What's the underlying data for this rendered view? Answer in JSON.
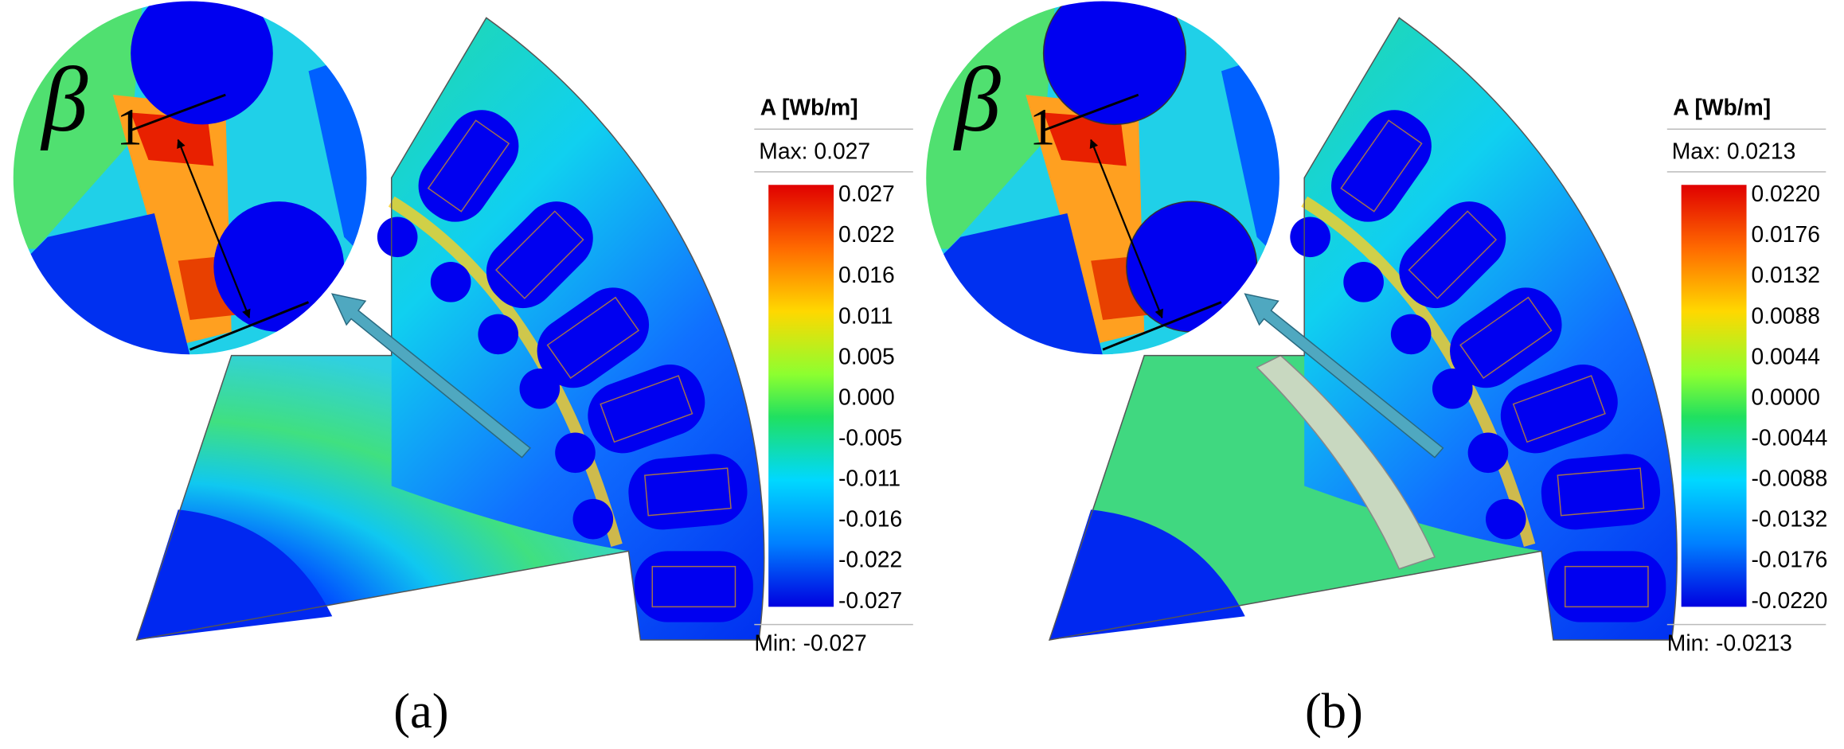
{
  "panels": [
    {
      "caption": "(a)",
      "beta": {
        "symbol": "β",
        "subscript": "1"
      },
      "legend": {
        "title": "A [Wb/m]",
        "max": "Max: 0.027",
        "min": "Min: -0.027",
        "ticks": [
          "0.027",
          "0.022",
          "0.016",
          "0.011",
          "0.005",
          "0.000",
          "-0.005",
          "-0.011",
          "-0.016",
          "-0.022",
          "-0.027"
        ]
      }
    },
    {
      "caption": "(b)",
      "beta": {
        "symbol": "β",
        "subscript": "1"
      },
      "legend": {
        "title": "A [Wb/m]",
        "max": "Max: 0.0213",
        "min": "Min: -0.0213",
        "ticks": [
          "0.0220",
          "0.0176",
          "0.0132",
          "0.0088",
          "0.0044",
          "0.0000",
          "-0.0044",
          "-0.0088",
          "-0.0132",
          "-0.0176",
          "-0.0220"
        ]
      }
    }
  ]
}
